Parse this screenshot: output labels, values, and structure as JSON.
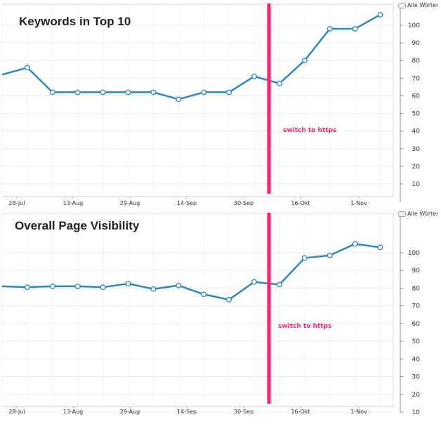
{
  "chart_data": [
    {
      "type": "line",
      "title": "Keywords in Top 10",
      "legend": "Alle Wörter",
      "legend_position": "top-right",
      "grid": true,
      "x_labels": [
        "28-Jul",
        "13-Aug",
        "29-Aug",
        "14-Sep",
        "30-Sep",
        "16-Okt",
        "1-Nov"
      ],
      "y_ticks": [
        10,
        20,
        30,
        40,
        50,
        60,
        70,
        80,
        90,
        100
      ],
      "ylim": [
        10,
        110
      ],
      "y_axis_side": "right",
      "series": [
        {
          "values": [
            72,
            76,
            62,
            62,
            62,
            62,
            62,
            58,
            62,
            62,
            71,
            67,
            80,
            98,
            98,
            106
          ]
        }
      ],
      "series_color": "#2a87c4",
      "annotation": {
        "text": "switch to https",
        "color": "#ff1e6e"
      }
    },
    {
      "type": "line",
      "title": "Overall Page Visibility",
      "legend": "Alle Wörter",
      "legend_position": "top-right",
      "grid": true,
      "x_labels": [
        "28-Jul",
        "13-Aug",
        "29-Aug",
        "14-Sep",
        "30-Sep",
        "16-Okt",
        "1-Nov"
      ],
      "y_ticks": [
        10,
        20,
        30,
        40,
        50,
        60,
        70,
        80,
        90,
        100
      ],
      "ylim": [
        10,
        110
      ],
      "y_axis_side": "right",
      "series": [
        {
          "values": [
            81,
            80.5,
            81,
            81,
            80.5,
            82.5,
            79.5,
            81.5,
            76.5,
            73.5,
            83.5,
            82,
            97,
            98.5,
            105,
            103
          ]
        }
      ],
      "series_color": "#2a87c4",
      "annotation": {
        "text": "switch to https",
        "color": "#ff1e6e"
      }
    }
  ]
}
